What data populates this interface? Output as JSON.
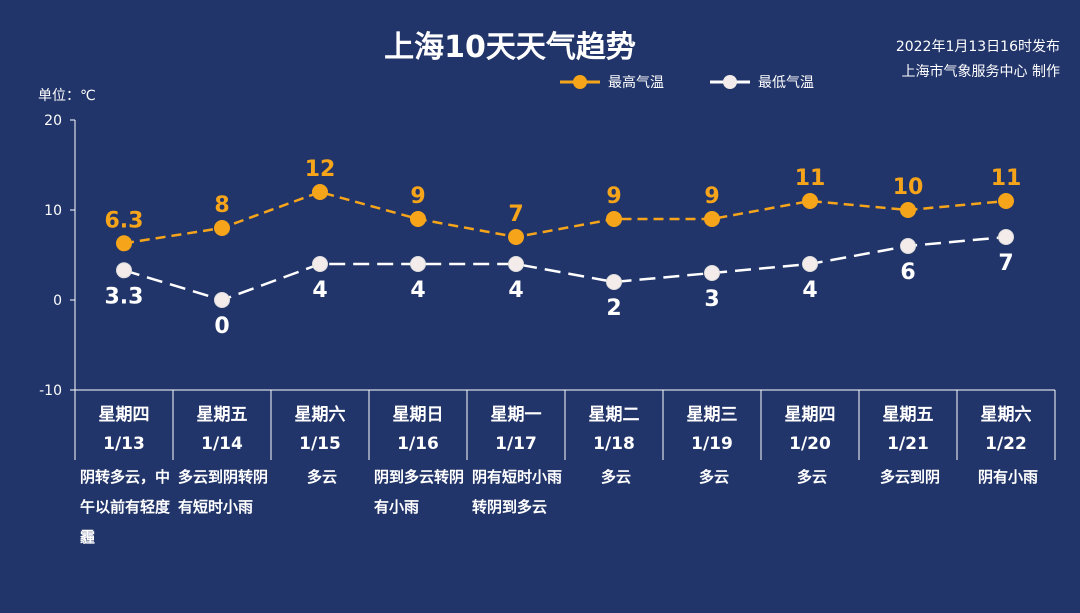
{
  "header": {
    "title": "上海10天天气趋势",
    "published": "2022年1月13日16时发布",
    "producer": "上海市气象服务中心 制作",
    "unit": "单位：℃"
  },
  "colors": {
    "background": "#22356a",
    "high": "#f6a51b",
    "low": "#ffffff"
  },
  "chart_data": {
    "type": "line",
    "title": "上海10天天气趋势",
    "ylabel": "单位：℃",
    "ylim": [
      -10,
      20
    ],
    "yticks": [
      "-10",
      "0",
      "10",
      "20"
    ],
    "legend_position": "top-right",
    "categories": [
      "1/13",
      "1/14",
      "1/15",
      "1/16",
      "1/17",
      "1/18",
      "1/19",
      "1/20",
      "1/21",
      "1/22"
    ],
    "weekdays": [
      "星期四",
      "星期五",
      "星期六",
      "星期日",
      "星期一",
      "星期二",
      "星期三",
      "星期四",
      "星期五",
      "星期六"
    ],
    "weather": [
      "阴转多云，中午以前有轻度霾",
      "多云到阴转阴有短时小雨",
      "多云",
      "阴到多云转阴有小雨",
      "阴有短时小雨转阴到多云",
      "多云",
      "多云",
      "多云",
      "多云到阴",
      "阴有小雨"
    ],
    "series": [
      {
        "name": "最高气温",
        "color": "#f6a51b",
        "values": [
          6.3,
          8,
          12,
          9,
          7,
          9,
          9,
          11,
          10,
          11
        ],
        "labels": [
          "6.3",
          "8",
          "12",
          "9",
          "7",
          "9",
          "9",
          "11",
          "10",
          "11"
        ]
      },
      {
        "name": "最低气温",
        "color": "#ffffff",
        "values": [
          3.3,
          0,
          4,
          4,
          4,
          2,
          3,
          4,
          6,
          7
        ],
        "labels": [
          "3.3",
          "0",
          "4",
          "4",
          "4",
          "2",
          "3",
          "4",
          "6",
          "7"
        ]
      }
    ]
  }
}
